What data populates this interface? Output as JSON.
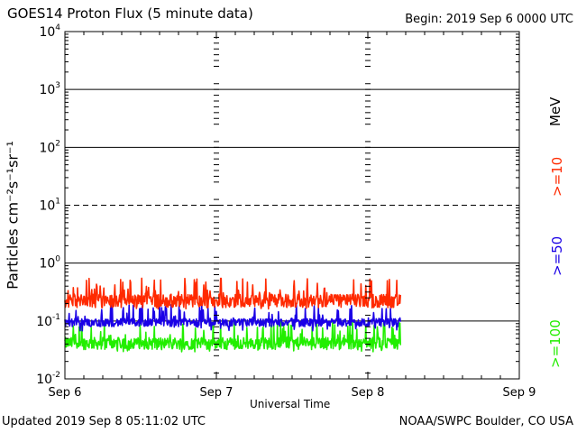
{
  "header": {
    "title": "GOES14 Proton Flux (5 minute data)",
    "begin": "Begin: 2019 Sep 6 0000 UTC"
  },
  "footer": {
    "updated": "Updated 2019 Sep  8 05:11:02 UTC",
    "credit": "NOAA/SWPC Boulder, CO USA"
  },
  "legend": {
    "units": "MeV",
    "s10": ">=10",
    "s50": ">=50",
    "s100": ">=100"
  },
  "chart_data": {
    "type": "line",
    "title": "GOES14 Proton Flux (5 minute data)",
    "xlabel": "Universal Time",
    "ylabel": "Particles cm⁻²s⁻¹sr⁻¹",
    "yscale": "log",
    "ylim_exp": [
      -2,
      4
    ],
    "y_ticks": [
      {
        "base": "10",
        "exp": "-2",
        "value": 0.01
      },
      {
        "base": "10",
        "exp": "-1",
        "value": 0.1
      },
      {
        "base": "10",
        "exp": "0",
        "value": 1
      },
      {
        "base": "10",
        "exp": "1",
        "value": 10
      },
      {
        "base": "10",
        "exp": "2",
        "value": 100
      },
      {
        "base": "10",
        "exp": "3",
        "value": 1000
      },
      {
        "base": "10",
        "exp": "4",
        "value": 10000
      }
    ],
    "x_ticks": [
      "Sep 6",
      "Sep 7",
      "Sep 8",
      "Sep 9"
    ],
    "xlim_hours": [
      0,
      72
    ],
    "data_end_hour": 53.2,
    "dashed_threshold": 10,
    "series": [
      {
        "name": ">=10 MeV",
        "color": "#ff2a00",
        "baseline": 0.23,
        "spread": 0.06,
        "spike_max": 0.55
      },
      {
        "name": ">=50 MeV",
        "color": "#1a00e6",
        "baseline": 0.095,
        "spread": 0.015,
        "spike_max": 0.2
      },
      {
        "name": ">=100 MeV",
        "color": "#22ee00",
        "baseline": 0.042,
        "spread": 0.01,
        "spike_max": 0.1
      }
    ]
  }
}
